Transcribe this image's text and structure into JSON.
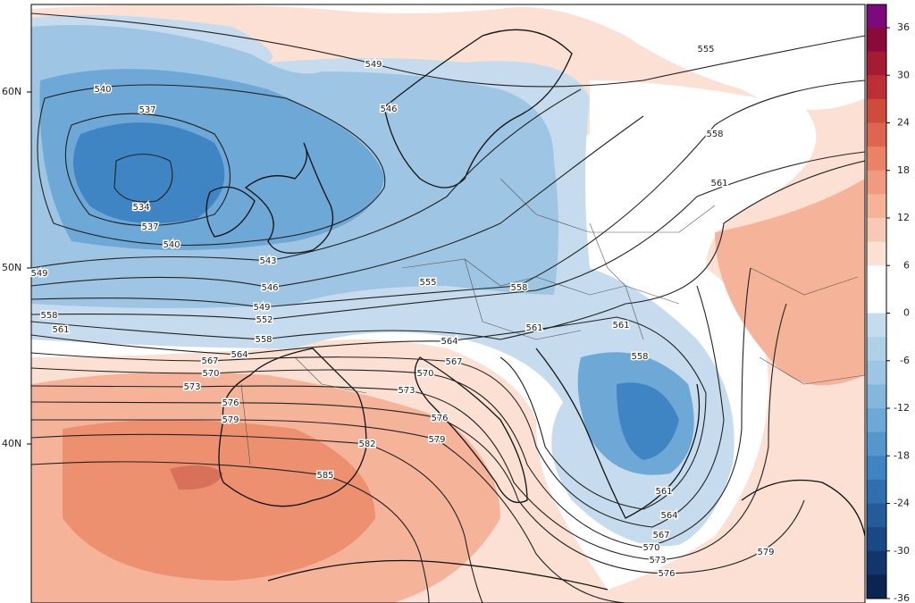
{
  "map": {
    "lat_labels": [
      "60N",
      "50N",
      "40N"
    ],
    "colorbar_ticks": [
      36,
      30,
      24,
      18,
      12,
      6,
      0,
      -6,
      -12,
      -18,
      -24,
      -30,
      -36
    ],
    "contour_labels": [
      "549",
      "540",
      "537",
      "534",
      "537",
      "540",
      "546",
      "543",
      "549",
      "546",
      "549",
      "552",
      "555",
      "558",
      "558",
      "561",
      "558",
      "564",
      "564",
      "561",
      "567",
      "570",
      "567",
      "570",
      "573",
      "573",
      "576",
      "579",
      "576",
      "579",
      "582",
      "585",
      "561",
      "558",
      "561",
      "564",
      "567",
      "570",
      "573",
      "576",
      "579",
      "555",
      "558",
      "561"
    ]
  }
}
